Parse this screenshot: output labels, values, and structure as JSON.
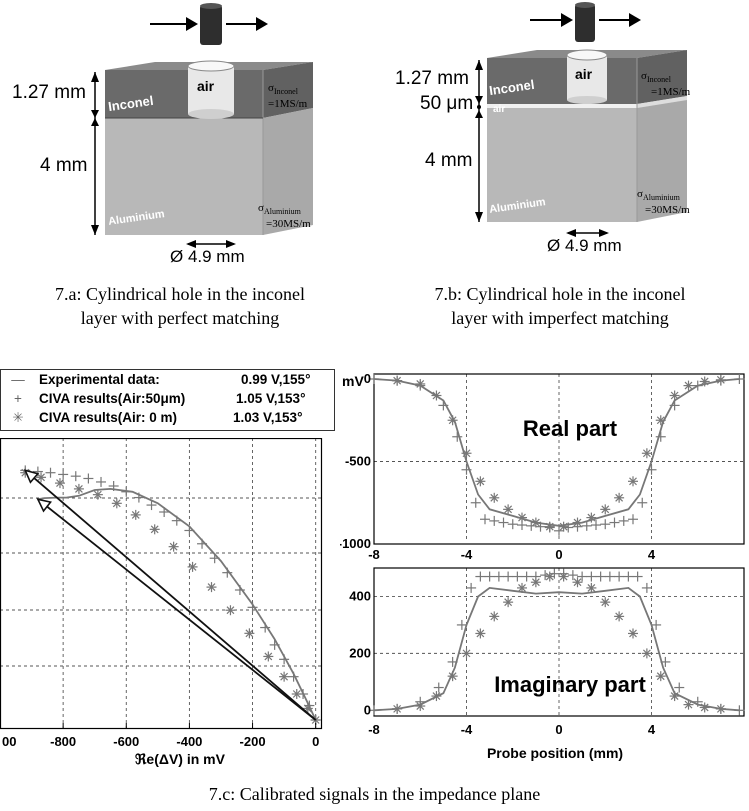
{
  "figure_a": {
    "thickness_top": "1.27 mm",
    "thickness_bottom": "4 mm",
    "layer_top": "Inconel",
    "layer_bottom": "Aluminium",
    "hole": "air",
    "sigma_top_symbol": "σ",
    "sigma_top_sub": "Inconel",
    "sigma_top_val": "=1MS/m",
    "sigma_bottom_symbol": "σ",
    "sigma_bottom_sub": "Aluminium",
    "sigma_bottom_val": "=30MS/m",
    "diameter": "Ø 4.9 mm",
    "caption_line1": "7.a: Cylindrical hole in the inconel",
    "caption_line2": "layer with perfect matching"
  },
  "figure_b": {
    "thickness_top": "1.27 mm",
    "gap": "50 μm",
    "gap_layer": "air",
    "thickness_bottom": "4 mm",
    "layer_top": "Inconel",
    "layer_bottom": "Aluminium",
    "hole": "air",
    "sigma_top_symbol": "σ",
    "sigma_top_sub": "Inconel",
    "sigma_top_val": "=1MS/m",
    "sigma_bottom_symbol": "σ",
    "sigma_bottom_sub": "Aluminium",
    "sigma_bottom_val": "=30MS/m",
    "diameter": "Ø 4.9 mm",
    "caption_line1": "7.b: Cylindrical hole in the inconel",
    "caption_line2": "layer with imperfect matching"
  },
  "legend": {
    "rows": [
      {
        "symbol": "—",
        "text": "Experimental data:",
        "value": "0.99 V,155°"
      },
      {
        "symbol": "+",
        "text": "CIVA results(Air:50μm)",
        "value": "1.05 V,153°"
      },
      {
        "symbol": "✳",
        "text": "CIVA results(Air:  0  m)",
        "value": "1.03 V,153°"
      }
    ]
  },
  "caption_c": "7.c: Calibrated signals in the impedance plane",
  "chart_data": [
    {
      "type": "scatter",
      "panel": "impedance-plane",
      "xlabel": "ℜe(ΔV) in mV",
      "xlim": [
        -1000,
        20
      ],
      "ylim": [
        0,
        450
      ],
      "xticks": [
        "00",
        "-800",
        "-600",
        "-400",
        "-200",
        "0"
      ],
      "series": [
        {
          "name": "Experimental data:",
          "style": "line",
          "color": "#777777",
          "x": [
            0,
            -30,
            -70,
            -130,
            -200,
            -300,
            -400,
            -500,
            -580,
            -650,
            -700,
            -750,
            -790,
            -820,
            -860,
            -880
          ],
          "y": [
            0,
            35,
            80,
            140,
            200,
            275,
            335,
            375,
            395,
            400,
            398,
            388,
            385,
            385,
            384,
            382
          ]
        },
        {
          "name": "CIVA results(Air:50μm)",
          "style": "plus",
          "color": "#777777",
          "x": [
            0,
            -20,
            -40,
            -70,
            -100,
            -130,
            -160,
            -200,
            -240,
            -280,
            -320,
            -360,
            -400,
            -440,
            -480,
            -520,
            -560,
            -600,
            -640,
            -680,
            -720,
            -760,
            -800,
            -840,
            -880,
            -920
          ],
          "y": [
            0,
            25,
            45,
            75,
            105,
            130,
            160,
            195,
            225,
            255,
            280,
            305,
            328,
            345,
            360,
            372,
            385,
            395,
            405,
            412,
            418,
            422,
            425,
            428,
            430,
            432
          ]
        },
        {
          "name": "CIVA results(Air:  0  m)",
          "style": "asterisk",
          "color": "#777777",
          "x": [
            0,
            -25,
            -60,
            -100,
            -150,
            -210,
            -270,
            -330,
            -390,
            -450,
            -510,
            -570,
            -630,
            -690,
            -750,
            -810,
            -870,
            -920
          ],
          "y": [
            0,
            20,
            45,
            75,
            110,
            150,
            190,
            230,
            265,
            300,
            330,
            355,
            375,
            390,
            400,
            410,
            420,
            428
          ]
        },
        {
          "name": "arrow-1",
          "style": "arrow",
          "color": "#111111",
          "x": [
            0,
            -920
          ],
          "y": [
            0,
            432
          ]
        },
        {
          "name": "arrow-2",
          "style": "arrow",
          "color": "#111111",
          "x": [
            0,
            -880
          ],
          "y": [
            0,
            382
          ]
        }
      ]
    },
    {
      "type": "scatter",
      "panel": "real-part",
      "title": "Real part",
      "ylabel": "mV",
      "xlim": [
        -8,
        8
      ],
      "ylim": [
        -1000,
        0
      ],
      "xticks": [
        -8,
        -4,
        0,
        4
      ],
      "yticks": [
        0,
        -500,
        -1000
      ],
      "series": [
        {
          "name": "Experimental data:",
          "style": "line",
          "color": "#777777",
          "x": [
            -8,
            -7,
            -6,
            -5,
            -4.5,
            -4,
            -3.5,
            -3,
            -2,
            -1,
            0,
            1,
            2,
            3,
            3.5,
            4,
            4.5,
            5,
            6,
            7,
            7.8
          ],
          "y": [
            0,
            -10,
            -40,
            -130,
            -260,
            -500,
            -700,
            -790,
            -830,
            -870,
            -890,
            -870,
            -830,
            -790,
            -700,
            -500,
            -260,
            -130,
            -40,
            -10,
            0
          ]
        },
        {
          "name": "CIVA results(Air:50μm)",
          "style": "plus",
          "color": "#777777",
          "x": [
            -8,
            -7,
            -6,
            -5,
            -4.4,
            -4,
            -3.6,
            -3.2,
            -2.8,
            -2.4,
            -2,
            -1.6,
            -1.2,
            -0.8,
            -0.4,
            0,
            0.4,
            0.8,
            1.2,
            1.6,
            2,
            2.4,
            2.8,
            3.2,
            3.6,
            4,
            4.4,
            5,
            6,
            7,
            7.8
          ],
          "y": [
            0,
            -10,
            -40,
            -160,
            -350,
            -550,
            -750,
            -850,
            -860,
            -870,
            -880,
            -885,
            -890,
            -895,
            -900,
            -920,
            -900,
            -895,
            -890,
            -885,
            -880,
            -870,
            -860,
            -850,
            -750,
            -550,
            -350,
            -160,
            -40,
            -10,
            0
          ]
        },
        {
          "name": "CIVA results(Air:  0  m)",
          "style": "asterisk",
          "color": "#777777",
          "x": [
            -7,
            -6,
            -5.3,
            -4.6,
            -4,
            -3.4,
            -2.8,
            -2.2,
            -1.6,
            -1,
            -0.4,
            0.2,
            0.8,
            1.4,
            2,
            2.6,
            3.2,
            3.8,
            4.4,
            5,
            5.6,
            6.3,
            7
          ],
          "y": [
            -10,
            -30,
            -100,
            -250,
            -450,
            -620,
            -720,
            -790,
            -840,
            -870,
            -895,
            -895,
            -870,
            -840,
            -790,
            -720,
            -620,
            -450,
            -250,
            -100,
            -40,
            -15,
            -5
          ]
        }
      ]
    },
    {
      "type": "scatter",
      "panel": "imaginary-part",
      "title": "Imaginary part",
      "xlabel": "Probe position (mm)",
      "xlim": [
        -8,
        8
      ],
      "ylim": [
        -20,
        500
      ],
      "xticks": [
        -8,
        -4,
        0,
        4
      ],
      "yticks": [
        0,
        200,
        400
      ],
      "series": [
        {
          "name": "Experimental data:",
          "style": "line",
          "color": "#777777",
          "x": [
            -8,
            -7,
            -6,
            -5,
            -4.5,
            -4,
            -3.5,
            -3,
            -2,
            -1,
            0,
            1,
            2,
            3,
            3.5,
            4,
            4.5,
            5,
            6,
            7,
            7.8
          ],
          "y": [
            0,
            5,
            20,
            60,
            150,
            300,
            400,
            430,
            420,
            410,
            415,
            410,
            420,
            430,
            400,
            300,
            150,
            60,
            20,
            5,
            0
          ]
        },
        {
          "name": "CIVA results(Air:50μm)",
          "style": "plus",
          "color": "#777777",
          "x": [
            -8,
            -7,
            -6,
            -5.2,
            -4.6,
            -4.2,
            -3.8,
            -3.4,
            -3,
            -2.6,
            -2.2,
            -1.8,
            -1.4,
            -1,
            -0.6,
            -0.2,
            0.2,
            0.6,
            1,
            1.4,
            1.8,
            2.2,
            2.6,
            3,
            3.4,
            3.8,
            4.2,
            4.6,
            5.2,
            6,
            7,
            7.8
          ],
          "y": [
            0,
            5,
            30,
            80,
            170,
            300,
            430,
            470,
            470,
            470,
            470,
            470,
            470,
            470,
            475,
            480,
            480,
            475,
            470,
            470,
            470,
            470,
            470,
            470,
            470,
            430,
            300,
            170,
            80,
            30,
            5,
            0
          ]
        },
        {
          "name": "CIVA results(Air:  0  m)",
          "style": "asterisk",
          "color": "#777777",
          "x": [
            -7,
            -6,
            -5.3,
            -4.6,
            -4,
            -3.4,
            -2.8,
            -2.2,
            -1.6,
            -1,
            -0.4,
            0.2,
            0.8,
            1.4,
            2,
            2.6,
            3.2,
            3.8,
            4.4,
            5,
            5.6,
            6.3,
            7
          ],
          "y": [
            5,
            15,
            50,
            120,
            200,
            270,
            330,
            380,
            430,
            450,
            470,
            470,
            450,
            430,
            380,
            330,
            270,
            200,
            120,
            50,
            20,
            10,
            5
          ]
        }
      ]
    }
  ]
}
